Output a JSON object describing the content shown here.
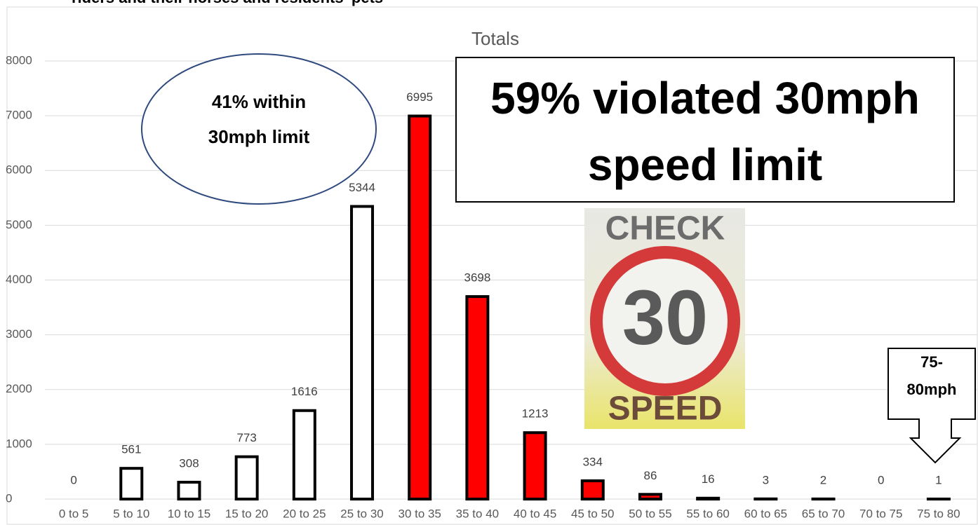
{
  "chart_data": {
    "type": "bar",
    "header": "riders and their horses and residents' pets",
    "title": "Totals",
    "categories": [
      "0 to 5",
      "5 to 10",
      "10 to 15",
      "15 to 20",
      "20 to 25",
      "25 to 30",
      "30 to 35",
      "35 to 40",
      "40 to 45",
      "45 to 50",
      "50 to 55",
      "55 to 60",
      "60 to 65",
      "65 to 70",
      "70 to 75",
      "75 to 80"
    ],
    "values": [
      0,
      561,
      308,
      773,
      1616,
      5344,
      6995,
      3698,
      1213,
      334,
      86,
      16,
      3,
      2,
      0,
      1
    ],
    "colors": [
      "#ffffff",
      "#ffffff",
      "#ffffff",
      "#ffffff",
      "#ffffff",
      "#ffffff",
      "#ff0000",
      "#ff0000",
      "#ff0000",
      "#ff0000",
      "#ff0000",
      "#ff0000",
      "#ff0000",
      "#ff0000",
      "#ff0000",
      "#ff0000"
    ],
    "ylim": [
      0,
      8000
    ],
    "yticks": [
      0,
      1000,
      2000,
      3000,
      4000,
      5000,
      6000,
      7000,
      8000
    ],
    "grid": true,
    "ellipse_note": [
      "41% within",
      "30mph limit"
    ],
    "box_note": [
      "59% violated 30mph",
      "speed limit"
    ],
    "sign": [
      "CHECK",
      "30",
      "SPEED"
    ],
    "arrow_note": [
      "75-",
      "80mph"
    ]
  }
}
